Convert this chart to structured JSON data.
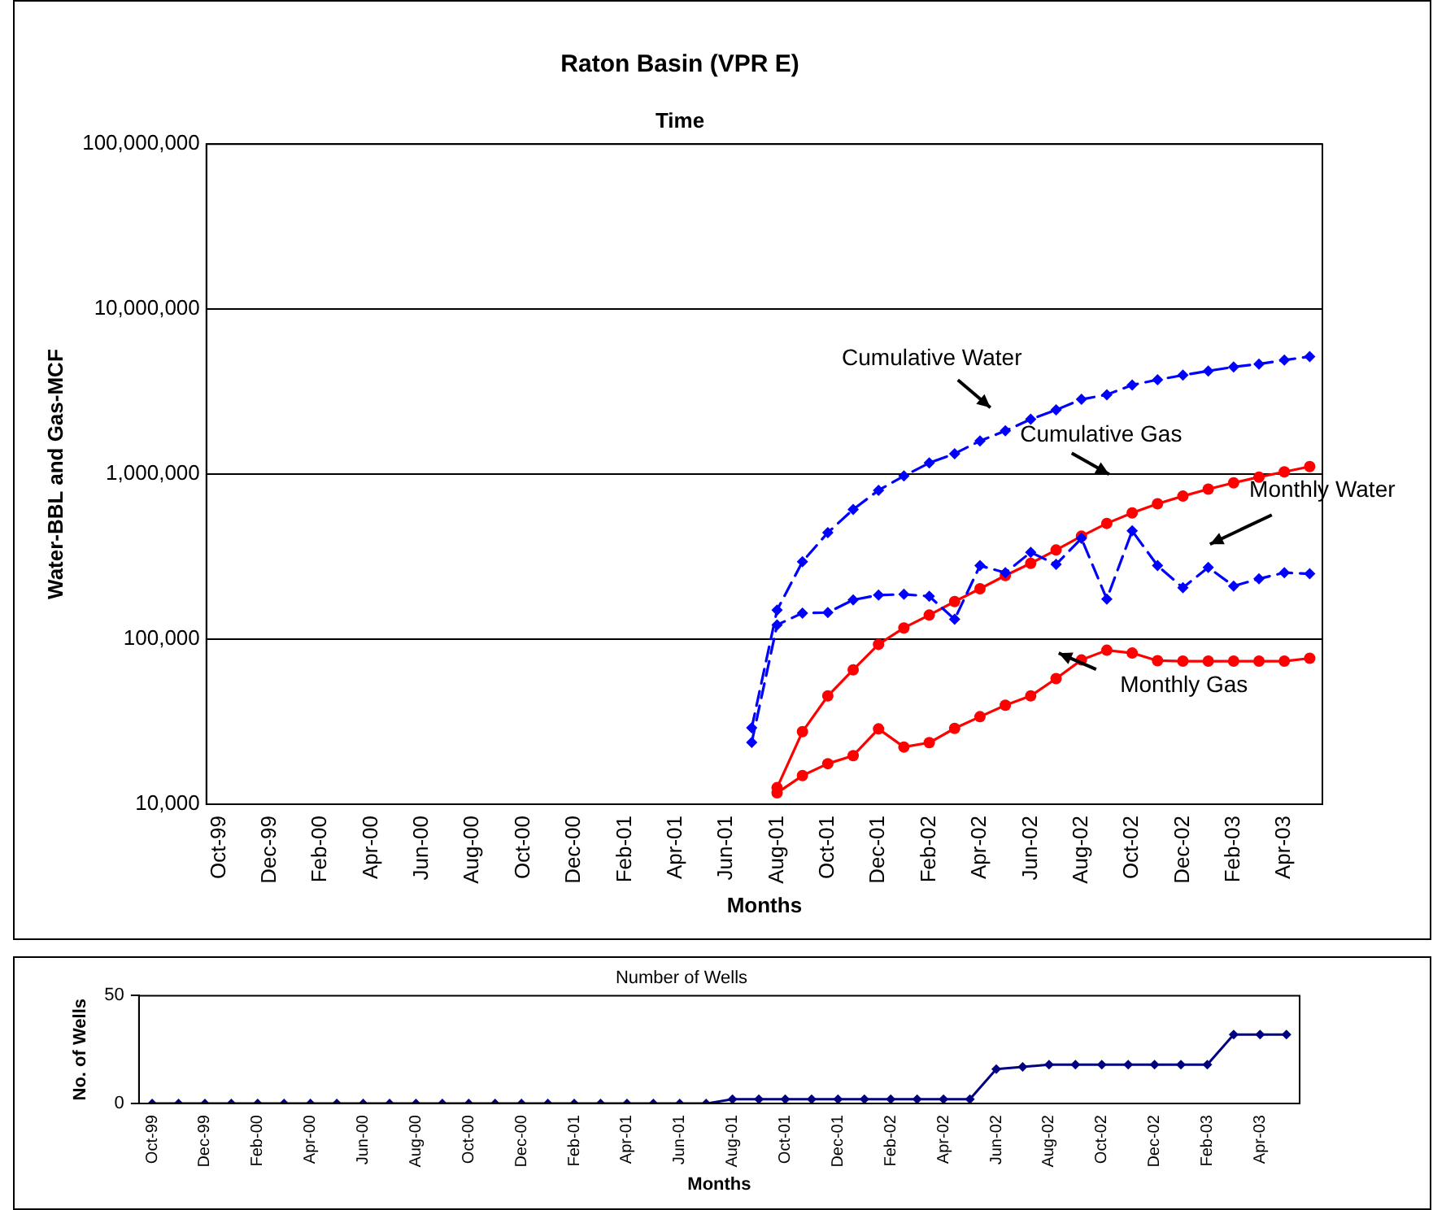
{
  "chart_data": [
    {
      "type": "line",
      "title": "Raton Basin (VPR E)",
      "subtitle": "Time",
      "xlabel": "Months",
      "ylabel": "Water-BBL and Gas-MCF",
      "categories": [
        "Oct-99",
        null,
        "Dec-99",
        null,
        "Feb-00",
        null,
        "Apr-00",
        null,
        "Jun-00",
        null,
        "Aug-00",
        null,
        "Oct-00",
        null,
        "Dec-00",
        null,
        "Feb-01",
        null,
        "Apr-01",
        null,
        "Jun-01",
        null,
        "Aug-01",
        null,
        "Oct-01",
        null,
        "Dec-01",
        null,
        "Feb-02",
        null,
        "Apr-02",
        null,
        "Jun-02",
        null,
        "Aug-02",
        null,
        "Oct-02",
        null,
        "Dec-02",
        null,
        "Feb-03",
        null,
        "Apr-03",
        null
      ],
      "series": [
        {
          "name": "Cumulative Water",
          "color": "#0000ff",
          "marker": "diamond",
          "line_style": "dashed",
          "values": [
            null,
            null,
            null,
            null,
            null,
            null,
            null,
            null,
            null,
            null,
            null,
            null,
            null,
            null,
            null,
            null,
            null,
            null,
            null,
            null,
            null,
            29000,
            150000,
            295000,
            442000,
            611000,
            798000,
            975000,
            1170000,
            1330000,
            1590000,
            1830000,
            2150000,
            2450000,
            2840000,
            3030000,
            3470000,
            3730000,
            3980000,
            4220000,
            4460000,
            4650000,
            4910000,
            5160000
          ]
        },
        {
          "name": "Monthly Water",
          "color": "#0000ff",
          "marker": "diamond",
          "line_style": "dashed",
          "values": [
            null,
            null,
            null,
            null,
            null,
            null,
            null,
            null,
            null,
            null,
            null,
            null,
            null,
            null,
            null,
            null,
            null,
            null,
            null,
            null,
            null,
            23700,
            122000,
            144000,
            145000,
            173000,
            185000,
            187000,
            182000,
            132000,
            279000,
            253000,
            336000,
            284000,
            408000,
            175000,
            453000,
            279000,
            205000,
            272000,
            210000,
            232000,
            253000,
            249000
          ]
        },
        {
          "name": "Cumulative Gas",
          "color": "#ff0000",
          "marker": "circle",
          "line_style": "solid",
          "values": [
            null,
            null,
            null,
            null,
            null,
            null,
            null,
            null,
            null,
            null,
            null,
            null,
            null,
            null,
            null,
            null,
            null,
            null,
            null,
            null,
            null,
            null,
            12600,
            27500,
            45300,
            65200,
            93000,
            117000,
            140000,
            169000,
            202000,
            243000,
            288000,
            347000,
            421000,
            503000,
            582000,
            662000,
            736000,
            811000,
            886000,
            960000,
            1033000,
            1111000
          ]
        },
        {
          "name": "Monthly Gas",
          "color": "#ff0000",
          "marker": "circle",
          "line_style": "solid",
          "values": [
            null,
            null,
            null,
            null,
            null,
            null,
            null,
            null,
            null,
            null,
            null,
            null,
            null,
            null,
            null,
            null,
            null,
            null,
            null,
            null,
            null,
            null,
            11700,
            14900,
            17600,
            19700,
            28600,
            22200,
            23600,
            28800,
            33900,
            39800,
            45300,
            57700,
            74800,
            85700,
            82400,
            74100,
            73600,
            73600,
            73600,
            73600,
            73600,
            76600
          ]
        }
      ],
      "log": "y",
      "ylim": [
        10000,
        100000000
      ],
      "yticks": [
        {
          "value": 10000,
          "label": "10,000"
        },
        {
          "value": 100000,
          "label": "100,000"
        },
        {
          "value": 1000000,
          "label": "1,000,000"
        },
        {
          "value": 10000000,
          "label": "10,000,000"
        },
        {
          "value": 100000000,
          "label": "100,000,000"
        }
      ],
      "grid": "y",
      "legend": false
    },
    {
      "type": "line",
      "title": "Number of Wells",
      "xlabel": "Months",
      "ylabel": "No. of Wells",
      "categories": [
        "Oct-99",
        null,
        "Dec-99",
        null,
        "Feb-00",
        null,
        "Apr-00",
        null,
        "Jun-00",
        null,
        "Aug-00",
        null,
        "Oct-00",
        null,
        "Dec-00",
        null,
        "Feb-01",
        null,
        "Apr-01",
        null,
        "Jun-01",
        null,
        "Aug-01",
        null,
        "Oct-01",
        null,
        "Dec-01",
        null,
        "Feb-02",
        null,
        "Apr-02",
        null,
        "Jun-02",
        null,
        "Aug-02",
        null,
        "Oct-02",
        null,
        "Dec-02",
        null,
        "Feb-03",
        null,
        "Apr-03",
        null
      ],
      "series": [
        {
          "color": "#000080",
          "marker": "diamond",
          "line_style": "solid",
          "values": [
            0,
            0,
            0,
            0,
            0,
            0,
            0,
            0,
            0,
            0,
            0,
            0,
            0,
            0,
            0,
            0,
            0,
            0,
            0,
            0,
            0,
            0,
            2,
            2,
            2,
            2,
            2,
            2,
            2,
            2,
            2,
            2,
            16,
            17,
            18,
            18,
            18,
            18,
            18,
            18,
            18,
            32,
            32,
            32
          ]
        }
      ],
      "ylim": [
        0,
        50
      ],
      "yticks": [
        0,
        50
      ],
      "grid": false,
      "legend": false
    }
  ]
}
